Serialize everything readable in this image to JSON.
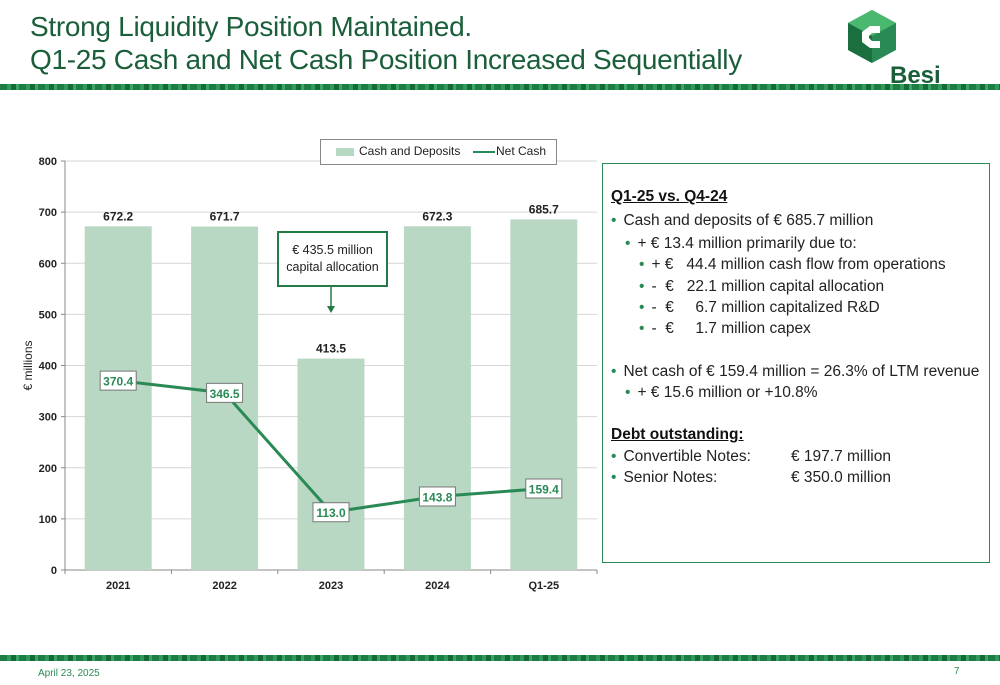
{
  "slide": {
    "title_line1": "Strong Liquidity Position Maintained.",
    "title_line2": "Q1-25 Cash and Net Cash Position Increased Sequentially",
    "logo_text": "Besi",
    "footer_date": "April 23, 2025",
    "page_number": "7"
  },
  "colors": {
    "brand_green": "#1b5e3a",
    "bar": "#b8d8c3",
    "line": "#2a8a55"
  },
  "chart_data": {
    "type": "bar",
    "categories": [
      "2021",
      "2022",
      "2023",
      "2024",
      "Q1-25"
    ],
    "series": [
      {
        "name": "Cash and Deposits",
        "type": "bar",
        "values": [
          672.2,
          671.7,
          413.5,
          672.3,
          685.7
        ]
      },
      {
        "name": "Net Cash",
        "type": "line",
        "values": [
          370.4,
          346.5,
          113.0,
          143.8,
          159.4
        ]
      }
    ],
    "bar_labels": [
      "672.2",
      "671.7",
      "413.5",
      "672.3",
      "685.7"
    ],
    "line_labels": [
      "370.4",
      "346.5",
      "113.0",
      "143.8",
      "159.4"
    ],
    "ylabel": "€ millions",
    "ylim": [
      0,
      800
    ],
    "yticks": [
      "0",
      "100",
      "200",
      "300",
      "400",
      "500",
      "600",
      "700",
      "800"
    ],
    "grid": true,
    "legend_position": "top",
    "annotation": {
      "line1": "€ 435.5 million",
      "line2": "capital allocation",
      "category": "2023"
    }
  },
  "panel": {
    "heading": "Q1-25 vs. Q4-24",
    "lines": [
      {
        "bullet": "•",
        "text": "Cash and deposits of € 685.7 million"
      },
      {
        "bullet": "•",
        "text": "+ € 13.4 million primarily due to:"
      },
      {
        "bullet": "•",
        "text": "+ €   44.4 million cash flow from operations"
      },
      {
        "bullet": "•",
        "text": "-  €   22.1 million capital allocation"
      },
      {
        "bullet": "•",
        "text": "-  €     6.7 million capitalized R&D"
      },
      {
        "bullet": "•",
        "text": "-  €     1.7 million capex"
      },
      {
        "bullet": "•",
        "text": "Net cash of € 159.4 million = 26.3% of LTM revenue"
      },
      {
        "bullet": "•",
        "text": "+ € 15.6 million or +10.8%"
      }
    ],
    "debt_heading": "Debt outstanding:",
    "debt_rows": [
      {
        "bullet": "•",
        "label": "Convertible Notes:",
        "value": "€ 197.7 million"
      },
      {
        "bullet": "•",
        "label": "Senior Notes:",
        "value": "€ 350.0 million"
      }
    ]
  }
}
